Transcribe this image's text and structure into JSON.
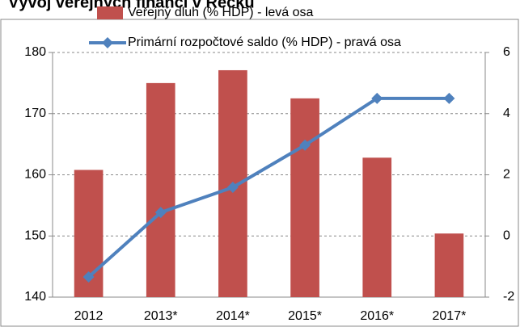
{
  "chart_data": {
    "type": "bar_line",
    "title": "Vývoj veřejných financí v Řecku",
    "categories": [
      "2012",
      "2013*",
      "2014*",
      "2015*",
      "2016*",
      "2017*"
    ],
    "series": [
      {
        "name": "Veřejný dluh (% HDP) - levá osa",
        "type": "bar",
        "color": "#c0504d",
        "values": [
          160.8,
          175.0,
          177.1,
          172.5,
          162.8,
          150.4
        ]
      },
      {
        "name": "Primární rozpočtové saldo (% HDP) - pravá osa",
        "type": "line",
        "axis": "y2",
        "color": "#4f81bd",
        "values": [
          -1.34,
          0.77,
          1.59,
          2.97,
          4.5,
          4.5
        ]
      }
    ],
    "ylim": [
      140,
      180
    ],
    "yticks": [
      140,
      150,
      160,
      170,
      180
    ],
    "y2lim": [
      -2,
      6
    ],
    "y2ticks": [
      -2,
      0,
      2,
      4,
      6
    ],
    "grid": true
  }
}
